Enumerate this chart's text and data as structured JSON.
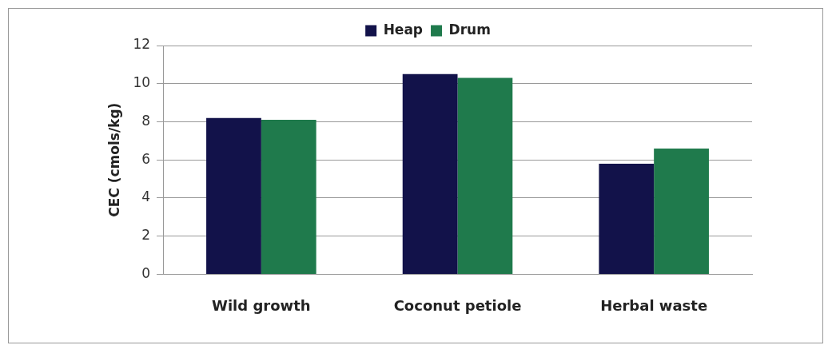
{
  "chart_data": {
    "type": "bar",
    "ylabel": "CEC (cmols/kg)",
    "categories": [
      "Wild growth",
      "Coconut petiole",
      "Herbal waste"
    ],
    "series": [
      {
        "name": "Heap",
        "color": "#12124a",
        "values": [
          8.2,
          10.5,
          5.8
        ]
      },
      {
        "name": "Drum",
        "color": "#1f7a4c",
        "values": [
          8.1,
          10.3,
          6.6
        ]
      }
    ],
    "ylim": [
      0,
      12
    ],
    "yticks": [
      0,
      2,
      4,
      6,
      8,
      10,
      12
    ],
    "grid": "y",
    "legend": "top"
  }
}
